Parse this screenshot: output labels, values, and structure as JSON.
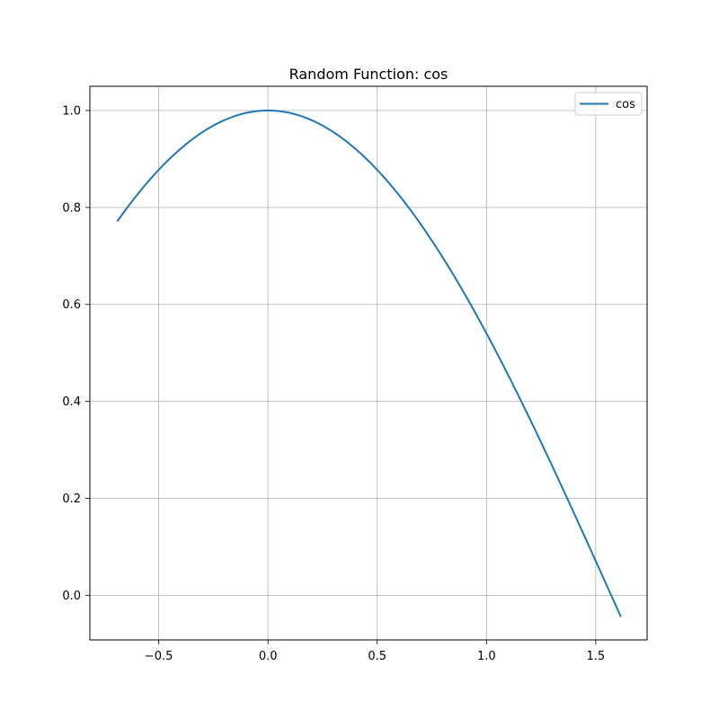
{
  "chart_data": {
    "type": "line",
    "title": "Random Function: cos",
    "xlabel": "",
    "ylabel": "",
    "xlim": [
      -0.815,
      1.735
    ],
    "ylim": [
      -0.092,
      1.05
    ],
    "xticks": [
      -0.5,
      0.0,
      0.5,
      1.0,
      1.5
    ],
    "xtick_labels": [
      "−0.5",
      "0.0",
      "0.5",
      "1.0",
      "1.5"
    ],
    "yticks": [
      0.0,
      0.2,
      0.4,
      0.6,
      0.8,
      1.0
    ],
    "ytick_labels": [
      "0.0",
      "0.2",
      "0.4",
      "0.6",
      "0.8",
      "1.0"
    ],
    "grid": true,
    "legend_position": "top-right",
    "series": [
      {
        "name": "cos",
        "color": "#1f77b4",
        "function": "cos",
        "x_range": [
          -0.69,
          1.615
        ],
        "x": [
          -0.69,
          -0.6,
          -0.5,
          -0.4,
          -0.3,
          -0.2,
          -0.1,
          0.0,
          0.1,
          0.2,
          0.3,
          0.4,
          0.5,
          0.6,
          0.7,
          0.8,
          0.9,
          1.0,
          1.1,
          1.2,
          1.3,
          1.4,
          1.5,
          1.615
        ],
        "y": [
          0.771,
          0.825,
          0.878,
          0.921,
          0.955,
          0.98,
          0.995,
          1.0,
          0.995,
          0.98,
          0.955,
          0.921,
          0.878,
          0.825,
          0.765,
          0.697,
          0.622,
          0.54,
          0.454,
          0.362,
          0.267,
          0.17,
          0.071,
          -0.044
        ]
      }
    ]
  }
}
